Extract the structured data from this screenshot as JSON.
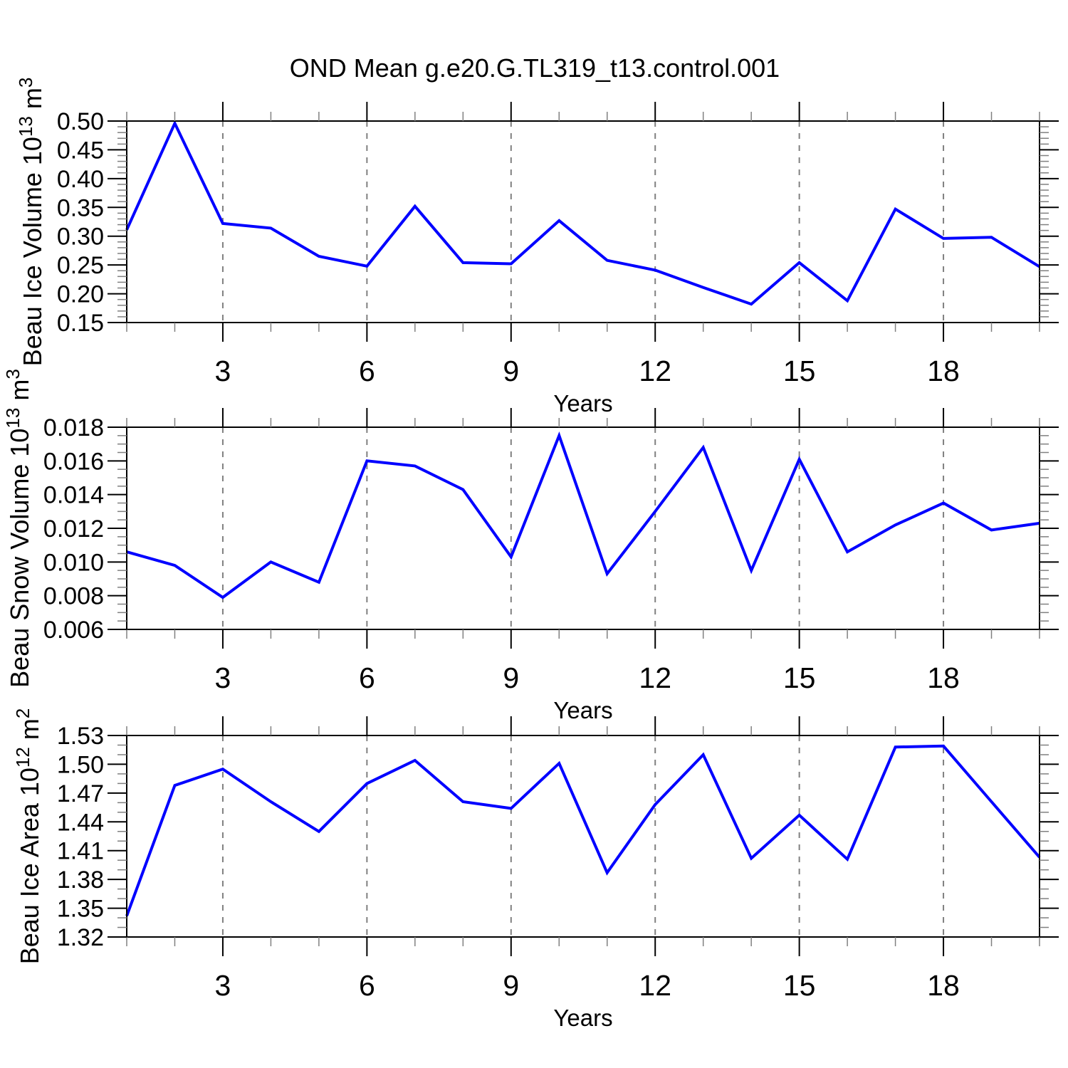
{
  "title": "OND Mean g.e20.G.TL319_t13.control.001",
  "xlabel": "Years",
  "colors": {
    "line": "#0000ff",
    "axis": "#000000",
    "grid": "#808080",
    "minor_tick": "#808080",
    "background": "#ffffff"
  },
  "chart_data": [
    {
      "type": "line",
      "name": "beau-ice-volume",
      "ylabel": "Beau Ice Volume 10^13 m^3",
      "ylabel_parts": [
        {
          "t": "Beau Ice Volume 10"
        },
        {
          "t": "13",
          "sup": true
        },
        {
          "t": " m"
        },
        {
          "t": "3",
          "sup": true
        }
      ],
      "xlabel": "Years",
      "x": [
        1,
        2,
        3,
        4,
        5,
        6,
        7,
        8,
        9,
        10,
        11,
        12,
        13,
        14,
        15,
        16,
        17,
        18,
        19,
        20
      ],
      "values": [
        0.311,
        0.496,
        0.322,
        0.314,
        0.265,
        0.248,
        0.352,
        0.254,
        0.252,
        0.327,
        0.258,
        0.241,
        0.211,
        0.182,
        0.254,
        0.188,
        0.347,
        0.296,
        0.298,
        0.247
      ],
      "xlim": [
        1,
        20
      ],
      "ylim": [
        0.15,
        0.5
      ],
      "x_major_ticks": [
        3,
        6,
        9,
        12,
        15,
        18
      ],
      "x_tick_labels": [
        "3",
        "6",
        "9",
        "12",
        "15",
        "18"
      ],
      "x_minor_step": 1,
      "y_major_ticks": [
        0.15,
        0.2,
        0.25,
        0.3,
        0.35,
        0.4,
        0.45,
        0.5
      ],
      "y_tick_labels": [
        "0.15",
        "0.20",
        "0.25",
        "0.30",
        "0.35",
        "0.40",
        "0.45",
        "0.50"
      ],
      "y_minor_step": 0.01,
      "grid_x": [
        3,
        6,
        9,
        12,
        15,
        18
      ],
      "grid_style": "vertical-dashed",
      "legend": "none"
    },
    {
      "type": "line",
      "name": "beau-snow-volume",
      "ylabel": "Beau Snow Volume 10^13 m^3",
      "ylabel_parts": [
        {
          "t": "Beau Snow Volume 10"
        },
        {
          "t": "13",
          "sup": true
        },
        {
          "t": " m"
        },
        {
          "t": "3",
          "sup": true
        }
      ],
      "xlabel": "Years",
      "x": [
        1,
        2,
        3,
        4,
        5,
        6,
        7,
        8,
        9,
        10,
        11,
        12,
        13,
        14,
        15,
        16,
        17,
        18,
        19,
        20
      ],
      "values": [
        0.0106,
        0.0098,
        0.0079,
        0.01,
        0.0088,
        0.016,
        0.0157,
        0.0143,
        0.0103,
        0.0175,
        0.0093,
        0.013,
        0.0168,
        0.0095,
        0.0161,
        0.0106,
        0.0122,
        0.0135,
        0.0119,
        0.0123
      ],
      "xlim": [
        1,
        20
      ],
      "ylim": [
        0.006,
        0.018
      ],
      "x_major_ticks": [
        3,
        6,
        9,
        12,
        15,
        18
      ],
      "x_tick_labels": [
        "3",
        "6",
        "9",
        "12",
        "15",
        "18"
      ],
      "x_minor_step": 1,
      "y_major_ticks": [
        0.006,
        0.008,
        0.01,
        0.012,
        0.014,
        0.016,
        0.018
      ],
      "y_tick_labels": [
        "0.006",
        "0.008",
        "0.010",
        "0.012",
        "0.014",
        "0.016",
        "0.018"
      ],
      "y_minor_step": 0.0005,
      "grid_x": [
        3,
        6,
        9,
        12,
        15,
        18
      ],
      "grid_style": "vertical-dashed",
      "legend": "none"
    },
    {
      "type": "line",
      "name": "beau-ice-area",
      "ylabel": "Beau Ice Area 10^12 m^2",
      "ylabel_parts": [
        {
          "t": "Beau Ice Area 10"
        },
        {
          "t": "12",
          "sup": true
        },
        {
          "t": " m"
        },
        {
          "t": "2",
          "sup": true
        }
      ],
      "xlabel": "Years",
      "x": [
        1,
        2,
        3,
        4,
        5,
        6,
        7,
        8,
        9,
        10,
        11,
        12,
        13,
        14,
        15,
        16,
        17,
        18,
        19,
        20
      ],
      "values": [
        1.342,
        1.478,
        1.495,
        1.461,
        1.43,
        1.48,
        1.504,
        1.461,
        1.454,
        1.501,
        1.387,
        1.458,
        1.51,
        1.402,
        1.447,
        1.401,
        1.518,
        1.519,
        1.461,
        1.403
      ],
      "xlim": [
        1,
        20
      ],
      "ylim": [
        1.32,
        1.53
      ],
      "x_major_ticks": [
        3,
        6,
        9,
        12,
        15,
        18
      ],
      "x_tick_labels": [
        "3",
        "6",
        "9",
        "12",
        "15",
        "18"
      ],
      "x_minor_step": 1,
      "y_major_ticks": [
        1.32,
        1.35,
        1.38,
        1.41,
        1.44,
        1.47,
        1.5,
        1.53
      ],
      "y_tick_labels": [
        "1.32",
        "1.35",
        "1.38",
        "1.41",
        "1.44",
        "1.47",
        "1.50",
        "1.53"
      ],
      "y_minor_step": 0.01,
      "grid_x": [
        3,
        6,
        9,
        12,
        15,
        18
      ],
      "grid_style": "vertical-dashed",
      "legend": "none"
    }
  ]
}
